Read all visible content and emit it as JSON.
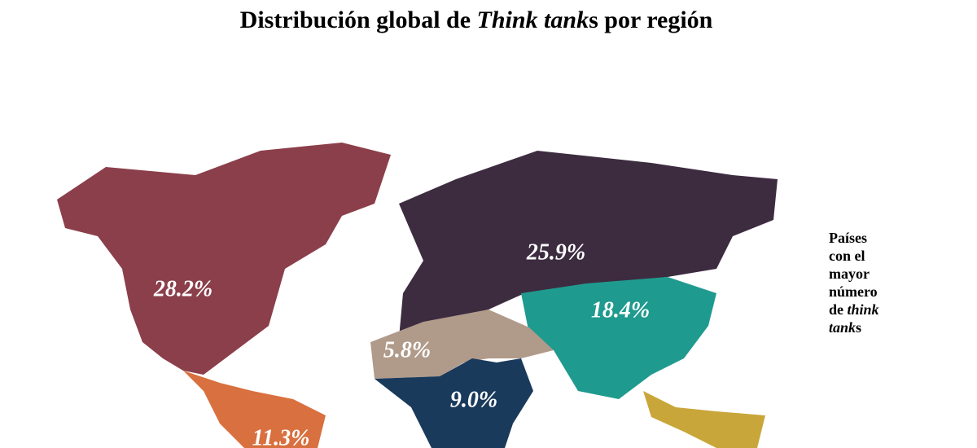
{
  "title": {
    "parts": [
      "Distribución global de ",
      "Think tank",
      "s por región"
    ]
  },
  "side_note": {
    "parts": [
      "Países",
      "con el",
      "mayor",
      "número",
      "de ",
      "think",
      "tank",
      "s"
    ]
  },
  "map": {
    "values": [
      28.2,
      11.3,
      25.9,
      18.4,
      5.8,
      9.0
    ],
    "value_labels": [
      "28.2%",
      "11.3%",
      "25.9%",
      "18.4%",
      "5.8%",
      "9.0%"
    ],
    "colors": [
      "#8b3f4a",
      "#d9703f",
      "#3d2b40",
      "#1f9a8e",
      "#b09a8a",
      "#1a3a5c"
    ]
  }
}
